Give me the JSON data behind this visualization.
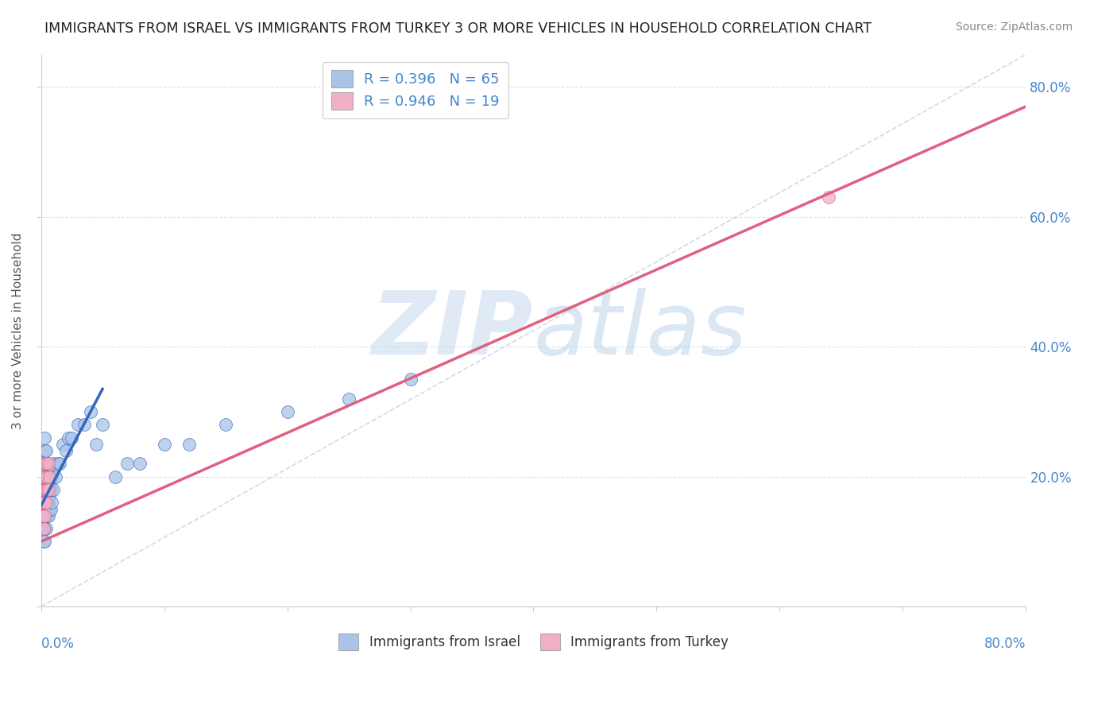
{
  "title": "IMMIGRANTS FROM ISRAEL VS IMMIGRANTS FROM TURKEY 3 OR MORE VEHICLES IN HOUSEHOLD CORRELATION CHART",
  "source": "Source: ZipAtlas.com",
  "ylabel": "3 or more Vehicles in Household",
  "watermark_zip": "ZIP",
  "watermark_atlas": "atlas",
  "israel_color": "#aac4e8",
  "turkey_color": "#f0b0c8",
  "israel_line_color": "#3366bb",
  "turkey_line_color": "#e06080",
  "background_color": "#ffffff",
  "grid_color": "#ccddee",
  "tick_label_color": "#4488cc",
  "ylabel_color": "#555555",
  "xlim": [
    0.0,
    0.8
  ],
  "ylim": [
    0.0,
    0.85
  ],
  "yticks": [
    0.0,
    0.2,
    0.4,
    0.6,
    0.8
  ],
  "ytick_labels": [
    "",
    "20.0%",
    "40.0%",
    "60.0%",
    "80.0%"
  ],
  "xticks": [
    0.0,
    0.1,
    0.2,
    0.3,
    0.4,
    0.5,
    0.6,
    0.7,
    0.8
  ],
  "legend_israel_label": "R = 0.396   N = 65",
  "legend_turkey_label": "R = 0.946   N = 19",
  "bottom_legend_israel": "Immigrants from Israel",
  "bottom_legend_turkey": "Immigrants from Turkey",
  "israel_scatter_x": [
    0.001,
    0.001,
    0.001,
    0.002,
    0.002,
    0.002,
    0.002,
    0.002,
    0.002,
    0.002,
    0.003,
    0.003,
    0.003,
    0.003,
    0.003,
    0.003,
    0.003,
    0.003,
    0.003,
    0.004,
    0.004,
    0.004,
    0.004,
    0.004,
    0.004,
    0.004,
    0.005,
    0.005,
    0.005,
    0.005,
    0.005,
    0.006,
    0.006,
    0.006,
    0.006,
    0.007,
    0.007,
    0.007,
    0.008,
    0.008,
    0.009,
    0.009,
    0.01,
    0.01,
    0.012,
    0.014,
    0.015,
    0.018,
    0.02,
    0.022,
    0.025,
    0.03,
    0.035,
    0.04,
    0.045,
    0.05,
    0.06,
    0.07,
    0.08,
    0.1,
    0.12,
    0.15,
    0.2,
    0.25,
    0.3
  ],
  "israel_scatter_y": [
    0.14,
    0.16,
    0.18,
    0.1,
    0.12,
    0.14,
    0.16,
    0.18,
    0.2,
    0.22,
    0.1,
    0.12,
    0.14,
    0.16,
    0.18,
    0.2,
    0.22,
    0.24,
    0.26,
    0.12,
    0.14,
    0.16,
    0.18,
    0.2,
    0.22,
    0.24,
    0.14,
    0.16,
    0.18,
    0.2,
    0.22,
    0.14,
    0.16,
    0.18,
    0.2,
    0.15,
    0.17,
    0.19,
    0.15,
    0.18,
    0.16,
    0.2,
    0.18,
    0.22,
    0.2,
    0.22,
    0.22,
    0.25,
    0.24,
    0.26,
    0.26,
    0.28,
    0.28,
    0.3,
    0.25,
    0.28,
    0.2,
    0.22,
    0.22,
    0.25,
    0.25,
    0.28,
    0.3,
    0.32,
    0.35
  ],
  "turkey_scatter_x": [
    0.001,
    0.001,
    0.002,
    0.002,
    0.002,
    0.002,
    0.003,
    0.003,
    0.003,
    0.003,
    0.004,
    0.004,
    0.004,
    0.005,
    0.005,
    0.006,
    0.006,
    0.007,
    0.64
  ],
  "turkey_scatter_y": [
    0.14,
    0.16,
    0.12,
    0.14,
    0.16,
    0.2,
    0.14,
    0.16,
    0.18,
    0.22,
    0.16,
    0.18,
    0.22,
    0.18,
    0.2,
    0.18,
    0.22,
    0.2,
    0.63
  ],
  "israel_line_x0": 0.0,
  "israel_line_x1": 0.05,
  "israel_line_y0": 0.155,
  "israel_line_y1": 0.335,
  "turkey_line_x0": 0.0,
  "turkey_line_x1": 0.8,
  "turkey_line_y0": 0.1,
  "turkey_line_y1": 0.77,
  "diag_line_x0": 0.0,
  "diag_line_x1": 0.8,
  "diag_line_y0": 0.0,
  "diag_line_y1": 0.85
}
